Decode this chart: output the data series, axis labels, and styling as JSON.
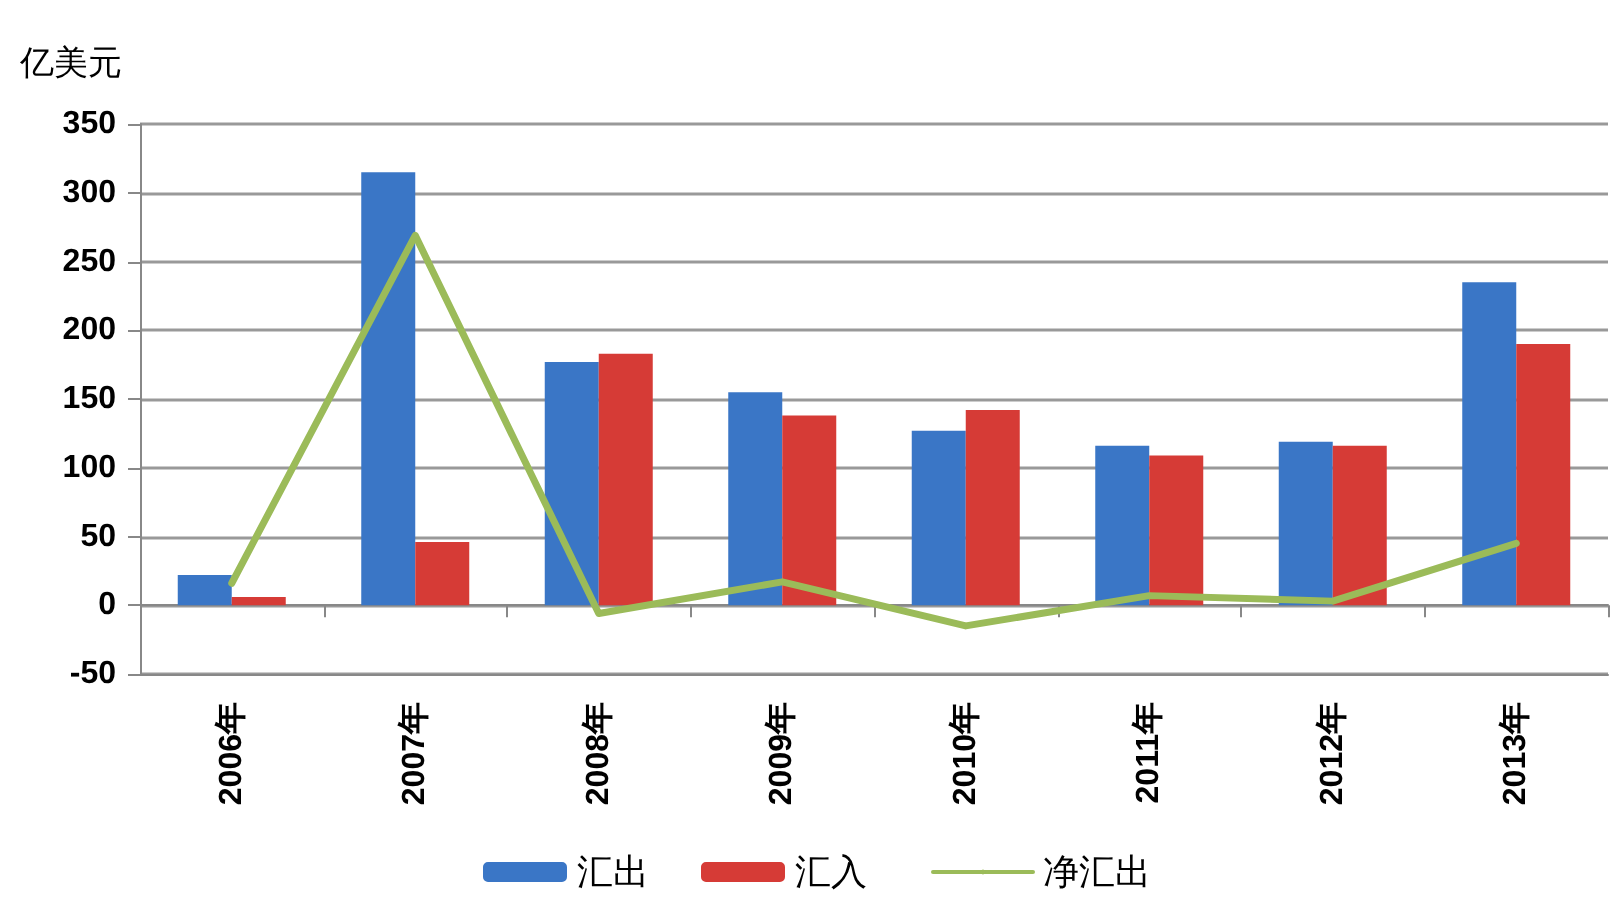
{
  "chart_data": {
    "type": "bar",
    "ylabel": "亿美元",
    "categories": [
      "2006年",
      "2007年",
      "2008年",
      "2009年",
      "2010年",
      "2011年",
      "2012年",
      "2013年"
    ],
    "series": [
      {
        "name": "汇出",
        "type": "bar",
        "color": "#3a76c6",
        "values": [
          22,
          315,
          177,
          155,
          127,
          116,
          119,
          235
        ]
      },
      {
        "name": "汇入",
        "type": "bar",
        "color": "#d63b36",
        "values": [
          6,
          46,
          183,
          138,
          142,
          109,
          116,
          190
        ]
      },
      {
        "name": "净汇出",
        "type": "line",
        "color": "#9bbb59",
        "values": [
          16,
          269,
          -6,
          17,
          -15,
          7,
          3,
          45
        ]
      }
    ],
    "ylim": [
      -50,
      350
    ],
    "yticks": [
      -50,
      0,
      50,
      100,
      150,
      200,
      250,
      300,
      350
    ],
    "grid": "y",
    "legend": "bottom",
    "marker": "none"
  }
}
